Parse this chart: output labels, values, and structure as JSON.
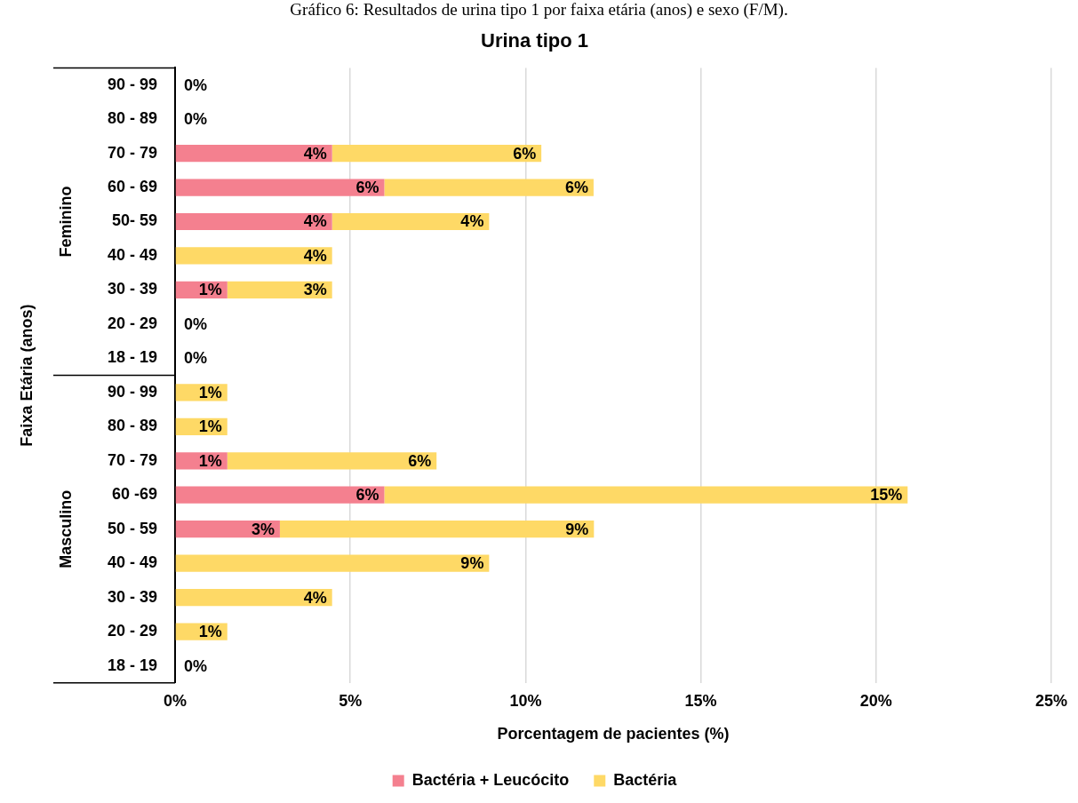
{
  "chart_data": {
    "type": "bar",
    "orientation": "horizontal",
    "stacked": true,
    "title": "Urina tipo 1",
    "subtitle": "Gráfico 6: Resultados de urina tipo 1 por faixa etária (anos) e sexo (F/M).",
    "xlabel": "Porcentagem de pacientes (%)",
    "ylabel": "Faixa Etária (anos)",
    "annotations": [
      "Feminino",
      "Masculino"
    ],
    "categories": [
      "90 - 99",
      "80 - 89",
      "70 - 79",
      "60 - 69",
      "50- 59",
      "40 - 49",
      "30 - 39",
      "20 - 29",
      "18 - 19",
      "90 - 99",
      "80 - 89",
      "70 - 79",
      "60 -69",
      "50 - 59",
      "40 - 49",
      "30 - 39",
      "20 - 29",
      "18 - 19"
    ],
    "series": [
      {
        "name": "Bactéria + Leucócito",
        "color": "#f4808f",
        "values": [
          0,
          0,
          4.48,
          5.97,
          4.48,
          0,
          1.49,
          0,
          0,
          0,
          0,
          1.49,
          5.97,
          2.99,
          0,
          0,
          0,
          0
        ],
        "value_labels": [
          null,
          null,
          "4%",
          "6%",
          "4%",
          null,
          "1%",
          null,
          null,
          null,
          null,
          "1%",
          "6%",
          "3%",
          null,
          null,
          null,
          null
        ]
      },
      {
        "name": "Bactéria",
        "color": "#fed966",
        "values": [
          0,
          0,
          5.97,
          5.97,
          4.48,
          4.48,
          2.99,
          0,
          0,
          1.49,
          1.49,
          5.97,
          14.93,
          8.96,
          8.96,
          4.48,
          1.49,
          0
        ],
        "value_labels": [
          "0%",
          "0%",
          "6%",
          "6%",
          "4%",
          "4%",
          "3%",
          "0%",
          "0%",
          "1%",
          "1%",
          "6%",
          "15%",
          "9%",
          "9%",
          "4%",
          "1%",
          "0%"
        ]
      }
    ],
    "xlim": [
      0,
      25
    ],
    "xticks": [
      {
        "value": 0,
        "label": "0%"
      },
      {
        "value": 5,
        "label": "5%"
      },
      {
        "value": 10,
        "label": "10%"
      },
      {
        "value": 15,
        "label": "15%"
      },
      {
        "value": 20,
        "label": "20%"
      },
      {
        "value": 25,
        "label": "25%"
      }
    ],
    "grid": "x",
    "legend": "bottom"
  }
}
